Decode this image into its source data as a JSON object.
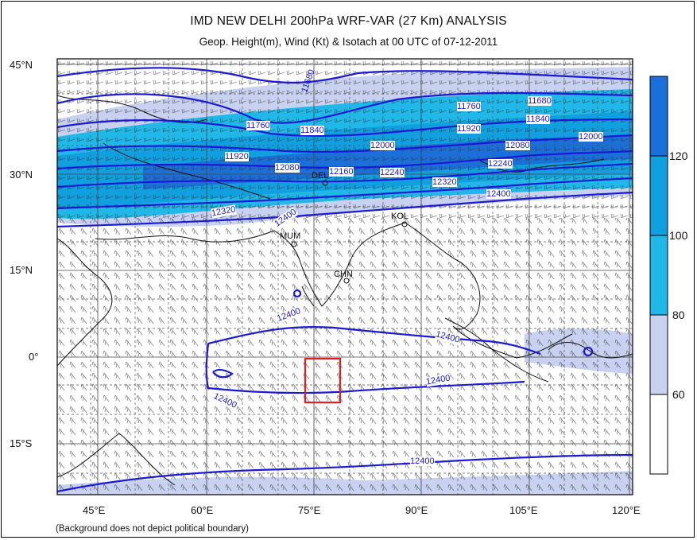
{
  "title": "IMD NEW DELHI 200hPa WRF-VAR (27 Km) ANALYSIS",
  "subtitle": "Geop. Height(m), Wind (Kt) & Isotach  at 00 UTC of 07-12-2011",
  "footnote": "(Background does not depict political boundary)",
  "axes": {
    "lat_labels": [
      "45°N",
      "30°N",
      "15°N",
      "0°",
      "15°S"
    ],
    "lon_labels": [
      "45°E",
      "60°E",
      "75°E",
      "90°E",
      "105°E",
      "120°E"
    ]
  },
  "colorbar": {
    "ticks": [
      "60",
      "80",
      "100",
      "120"
    ],
    "colors": [
      "#ffffff",
      "#c8d2f0",
      "#20b8e8",
      "#10a0e0",
      "#1a70d8"
    ]
  },
  "stations": [
    "MUM",
    "CHN",
    "KOL",
    "DEL"
  ],
  "contour_labels": {
    "north": [
      "11680",
      "11760",
      "11840",
      "11920",
      "12000",
      "12080",
      "12160",
      "12240",
      "12320",
      "12400"
    ],
    "south": [
      "12400",
      "12400",
      "12400",
      "12400",
      "12400"
    ]
  },
  "highlight_box_color": "#e02020",
  "contour_color": "#1a1ad6"
}
